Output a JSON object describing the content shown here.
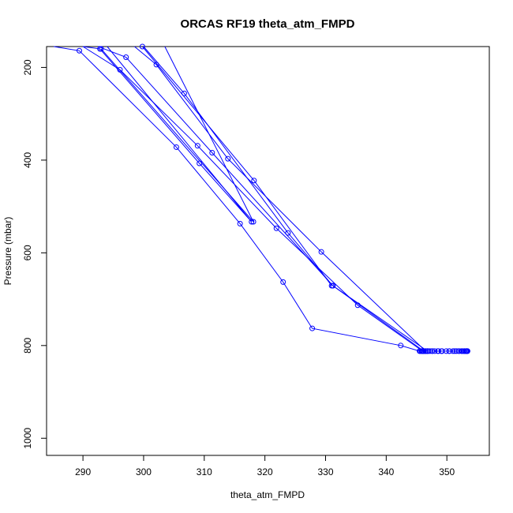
{
  "chart_data": {
    "type": "line",
    "title": "ORCAS RF19 theta_atm_FMPD",
    "xlabel": "theta_atm_FMPD",
    "ylabel": "Pressure (mbar)",
    "xlim": [
      284,
      357
    ],
    "ylim": [
      1037,
      155
    ],
    "y_reversed": true,
    "xticks": [
      290,
      300,
      310,
      320,
      330,
      340,
      350
    ],
    "yticks": [
      200,
      400,
      600,
      800,
      1000
    ],
    "grid": false,
    "legend": "none",
    "series_color": "#0000ff",
    "marker": "open-circle",
    "series": [
      {
        "x": [
          285.2,
          289.4,
          305.4,
          315.9,
          323.0,
          327.8,
          342.4,
          345.5,
          345.9,
          346.2,
          346.5,
          346.8,
          347.2,
          347.6,
          348.0,
          348.6,
          349.1,
          349.9,
          350.4,
          351.0,
          351.6,
          352.0,
          352.4,
          352.7,
          352.9,
          353.1,
          353.2,
          353.3,
          353.4,
          353.4,
          353.3,
          353.2,
          352.9,
          352.5,
          352.0,
          351.3,
          350.4,
          349.2,
          348.5,
          347.6,
          346.9,
          346.5,
          346.2,
          346.0,
          345.8,
          345.6
        ],
        "y": [
          147,
          164,
          372,
          537,
          663,
          763,
          800,
          812,
          812,
          812,
          812,
          812,
          812,
          812,
          812,
          812,
          812,
          812,
          812,
          812,
          812,
          812,
          812,
          812,
          812,
          812,
          812,
          812,
          812,
          812,
          812,
          812,
          812,
          812,
          812,
          812,
          812,
          812,
          812,
          812,
          812,
          812,
          812,
          812,
          812,
          812
        ]
      },
      {
        "x": [
          346.0,
          335.3,
          321.9,
          308.9,
          296.1,
          290.0
        ],
        "y": [
          812,
          713,
          547,
          369,
          205,
          118
        ]
      },
      {
        "x": [
          346.2,
          331.2,
          311.3,
          297.1,
          292.5
        ],
        "y": [
          812,
          671,
          384,
          178,
          120
        ]
      },
      {
        "x": [
          346.5,
          329.3,
          313.9,
          302.1,
          298.5
        ],
        "y": [
          812,
          598,
          397,
          194,
          125
        ]
      },
      {
        "x": [
          346.8,
          331.2,
          323.8,
          306.7,
          300.0
        ],
        "y": [
          812,
          671,
          557,
          256,
          150
        ]
      },
      {
        "x": [
          293.0,
          318.1,
          303.5
        ],
        "y": [
          160,
          533,
          118
        ]
      },
      {
        "x": [
          294.0,
          317.8,
          309.2,
          292.8,
          290.0
        ],
        "y": [
          118,
          533,
          407,
          160,
          125
        ]
      },
      {
        "x": [
          299.8,
          318.2,
          331.0
        ],
        "y": [
          155,
          444,
          671
        ]
      }
    ]
  }
}
